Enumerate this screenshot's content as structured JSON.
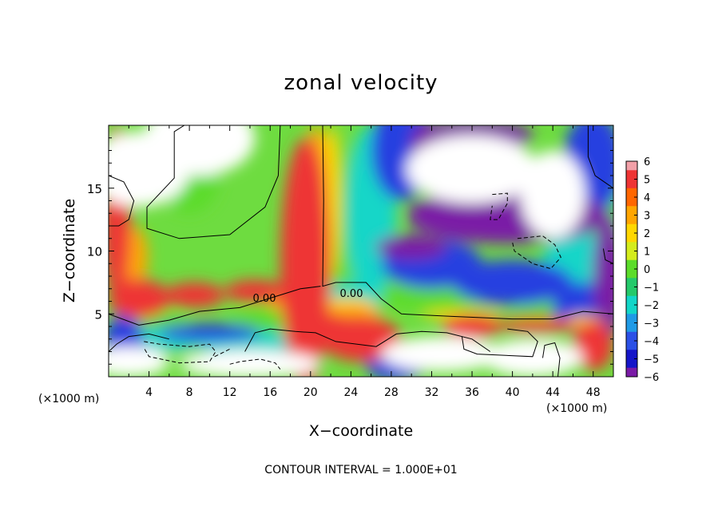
{
  "chart_data": {
    "type": "heatmap",
    "title": "zonal velocity",
    "xlabel": "X−coordinate",
    "ylabel": "Z−coordinate",
    "x_unit_left": "(×1000 m)",
    "x_unit_right": "(×1000 m)",
    "footer": "CONTOUR INTERVAL = 1.000E+01",
    "xlim": [
      0,
      50
    ],
    "ylim": [
      0,
      20
    ],
    "x_ticks": [
      4,
      8,
      12,
      16,
      20,
      24,
      28,
      32,
      36,
      40,
      44,
      48
    ],
    "y_ticks": [
      5,
      10,
      15
    ],
    "contour_labels": [
      "0.00",
      "0.00"
    ],
    "colorbar": {
      "range": [
        -6,
        6
      ],
      "tick_labels": [
        "6",
        "5",
        "4",
        "3",
        "2",
        "1",
        "0",
        "−1",
        "−2",
        "−3",
        "−4",
        "−5",
        "−6"
      ],
      "colors": [
        "#f2a0a8",
        "#ee3434",
        "#ff6600",
        "#ffa500",
        "#ffd700",
        "#d4ec1c",
        "#5bdc2a",
        "#24c96a",
        "#12d6c8",
        "#1f9ae6",
        "#2b50e6",
        "#1515c8",
        "#7a1aa6"
      ]
    },
    "fields": {
      "white": [
        [
          3,
          16.5,
          5,
          3
        ],
        [
          9,
          19,
          5.5,
          3
        ],
        [
          36,
          16.5,
          6.5,
          2.7
        ],
        [
          44,
          14.5,
          3.2,
          3.5
        ],
        [
          33,
          1.8,
          6,
          1.4
        ],
        [
          42,
          1.5,
          5,
          1.5
        ],
        [
          14,
          1,
          7,
          1.1
        ],
        [
          2,
          1.2,
          4,
          1.2
        ]
      ],
      "red": [
        [
          19.5,
          9,
          2.5,
          10
        ],
        [
          0.8,
          13,
          1.4,
          7
        ],
        [
          3,
          6.2,
          3,
          1.6
        ],
        [
          8.5,
          6.5,
          3,
          1
        ],
        [
          14.5,
          6.8,
          3,
          0.9
        ],
        [
          25,
          3,
          4,
          1.8
        ],
        [
          36,
          4,
          3,
          0.9
        ],
        [
          48,
          2.5,
          2,
          2
        ],
        [
          42.5,
          4.1,
          4,
          0.6
        ],
        [
          21.5,
          4.1,
          3,
          0.9
        ]
      ],
      "purple": [
        [
          39.5,
          12.8,
          10,
          2.2
        ],
        [
          36,
          19.2,
          6,
          1.3
        ],
        [
          31.5,
          18,
          1.6,
          2.2
        ],
        [
          30,
          10.3,
          3.5,
          1
        ],
        [
          49.5,
          8,
          1.5,
          5
        ]
      ],
      "blue": [
        [
          29,
          18,
          3,
          4
        ],
        [
          48,
          17,
          3,
          4
        ],
        [
          32,
          9,
          5,
          2
        ],
        [
          40,
          7.5,
          6,
          1.8
        ],
        [
          47,
          5.5,
          3,
          2
        ],
        [
          10,
          3.5,
          5,
          0.7
        ],
        [
          1.5,
          2.5,
          2,
          2.5
        ],
        [
          28.5,
          1,
          3,
          1.4
        ]
      ],
      "cyan": [
        [
          26,
          13,
          2.5,
          7
        ],
        [
          24,
          6,
          3,
          1.5
        ],
        [
          14,
          2.5,
          5,
          1.2
        ],
        [
          46,
          9,
          3,
          3
        ],
        [
          6,
          3,
          4,
          1
        ]
      ],
      "green": [
        [
          23,
          12.5,
          1.2,
          7
        ],
        [
          32,
          6.5,
          6,
          1.2
        ],
        [
          18,
          4.5,
          6,
          1
        ],
        [
          4,
          4.2,
          4,
          0.8
        ],
        [
          45,
          5,
          5,
          1.2
        ],
        [
          49,
          12,
          2,
          6
        ],
        [
          8,
          16,
          3,
          3
        ]
      ],
      "yellow": [
        [
          22,
          14,
          0.9,
          6
        ],
        [
          23.5,
          5.6,
          3,
          0.7
        ],
        [
          47,
          4.3,
          2,
          0.6
        ],
        [
          35,
          4.9,
          4,
          0.4
        ]
      ],
      "orange": [
        [
          20.5,
          15,
          1.2,
          5
        ],
        [
          24,
          4.7,
          3,
          1
        ],
        [
          17.5,
          6.2,
          2,
          1
        ],
        [
          2.4,
          9.5,
          1.5,
          2.5
        ],
        [
          36.5,
          4,
          2,
          0.6
        ]
      ]
    },
    "contours_solid": [
      [
        [
          17,
          20
        ],
        [
          16.8,
          16
        ],
        [
          15.5,
          13.5
        ],
        [
          12,
          11.3
        ],
        [
          7,
          11
        ],
        [
          3.8,
          11.8
        ],
        [
          3.8,
          13.5
        ],
        [
          6.5,
          15.8
        ],
        [
          6.5,
          19.5
        ],
        [
          7.5,
          20
        ]
      ],
      [
        [
          21.2,
          20
        ],
        [
          21.3,
          14
        ],
        [
          21.2,
          7.2
        ],
        [
          22.5,
          7.5
        ],
        [
          25.5,
          7.5
        ],
        [
          27,
          6.2
        ],
        [
          29,
          5
        ],
        [
          34,
          4.8
        ],
        [
          40,
          4.6
        ],
        [
          44,
          4.6
        ],
        [
          47,
          5.2
        ],
        [
          50,
          5
        ]
      ],
      [
        [
          0,
          5
        ],
        [
          3,
          4.1
        ],
        [
          6,
          4.5
        ],
        [
          9,
          5.2
        ],
        [
          13,
          5.5
        ],
        [
          15,
          6
        ],
        [
          17,
          6.5
        ],
        [
          19,
          7
        ],
        [
          21,
          7.2
        ]
      ],
      [
        [
          13.5,
          2
        ],
        [
          14.5,
          3.5
        ],
        [
          16,
          3.8
        ],
        [
          18.5,
          3.6
        ],
        [
          20.5,
          3.5
        ],
        [
          22.5,
          2.8
        ],
        [
          26.5,
          2.4
        ],
        [
          28.5,
          3.4
        ],
        [
          31,
          3.6
        ],
        [
          33.5,
          3.5
        ],
        [
          36,
          3
        ],
        [
          37.8,
          2
        ]
      ],
      [
        [
          0,
          2
        ],
        [
          0.8,
          2.6
        ],
        [
          2,
          3.2
        ],
        [
          4,
          3.4
        ],
        [
          6,
          3
        ]
      ],
      [
        [
          44.5,
          0
        ],
        [
          44.7,
          1.5
        ],
        [
          44.2,
          2.7
        ],
        [
          43.2,
          2.5
        ],
        [
          43,
          1.5
        ]
      ],
      [
        [
          35,
          3.2
        ],
        [
          35.2,
          2.2
        ],
        [
          36.5,
          1.8
        ],
        [
          42,
          1.6
        ],
        [
          42.5,
          2.8
        ],
        [
          41.5,
          3.6
        ],
        [
          39.5,
          3.8
        ]
      ],
      [
        [
          47.5,
          20
        ],
        [
          47.5,
          17.5
        ],
        [
          48.2,
          16
        ],
        [
          50,
          15
        ]
      ],
      [
        [
          0,
          16
        ],
        [
          1.5,
          15.5
        ],
        [
          2.5,
          14
        ],
        [
          2,
          12.5
        ],
        [
          1,
          12
        ],
        [
          0,
          12
        ]
      ],
      [
        [
          49,
          10.2
        ],
        [
          49.2,
          9.3
        ],
        [
          50,
          9
        ]
      ]
    ],
    "contours_dashed": [
      [
        [
          3.5,
          2.8
        ],
        [
          5,
          2.6
        ],
        [
          8,
          2.4
        ],
        [
          10,
          2.6
        ],
        [
          10.6,
          2
        ],
        [
          10,
          1.2
        ],
        [
          7,
          1.1
        ],
        [
          4,
          1.6
        ],
        [
          3.5,
          2.3
        ]
      ],
      [
        [
          38,
          14.5
        ],
        [
          39.5,
          14.6
        ],
        [
          39.5,
          13.8
        ],
        [
          38.6,
          12.5
        ],
        [
          37.8,
          12.5
        ],
        [
          38,
          13.6
        ]
      ],
      [
        [
          40.5,
          11
        ],
        [
          43,
          11.2
        ],
        [
          44.2,
          10.5
        ],
        [
          44.8,
          9.5
        ],
        [
          43.8,
          8.6
        ],
        [
          42,
          9
        ],
        [
          40.2,
          10
        ],
        [
          40,
          10.7
        ]
      ],
      [
        [
          12,
          1
        ],
        [
          13,
          1.2
        ],
        [
          15,
          1.4
        ],
        [
          16.5,
          1.1
        ],
        [
          17,
          0.6
        ]
      ],
      [
        [
          10.5,
          1.6
        ],
        [
          12,
          2.2
        ]
      ]
    ]
  }
}
